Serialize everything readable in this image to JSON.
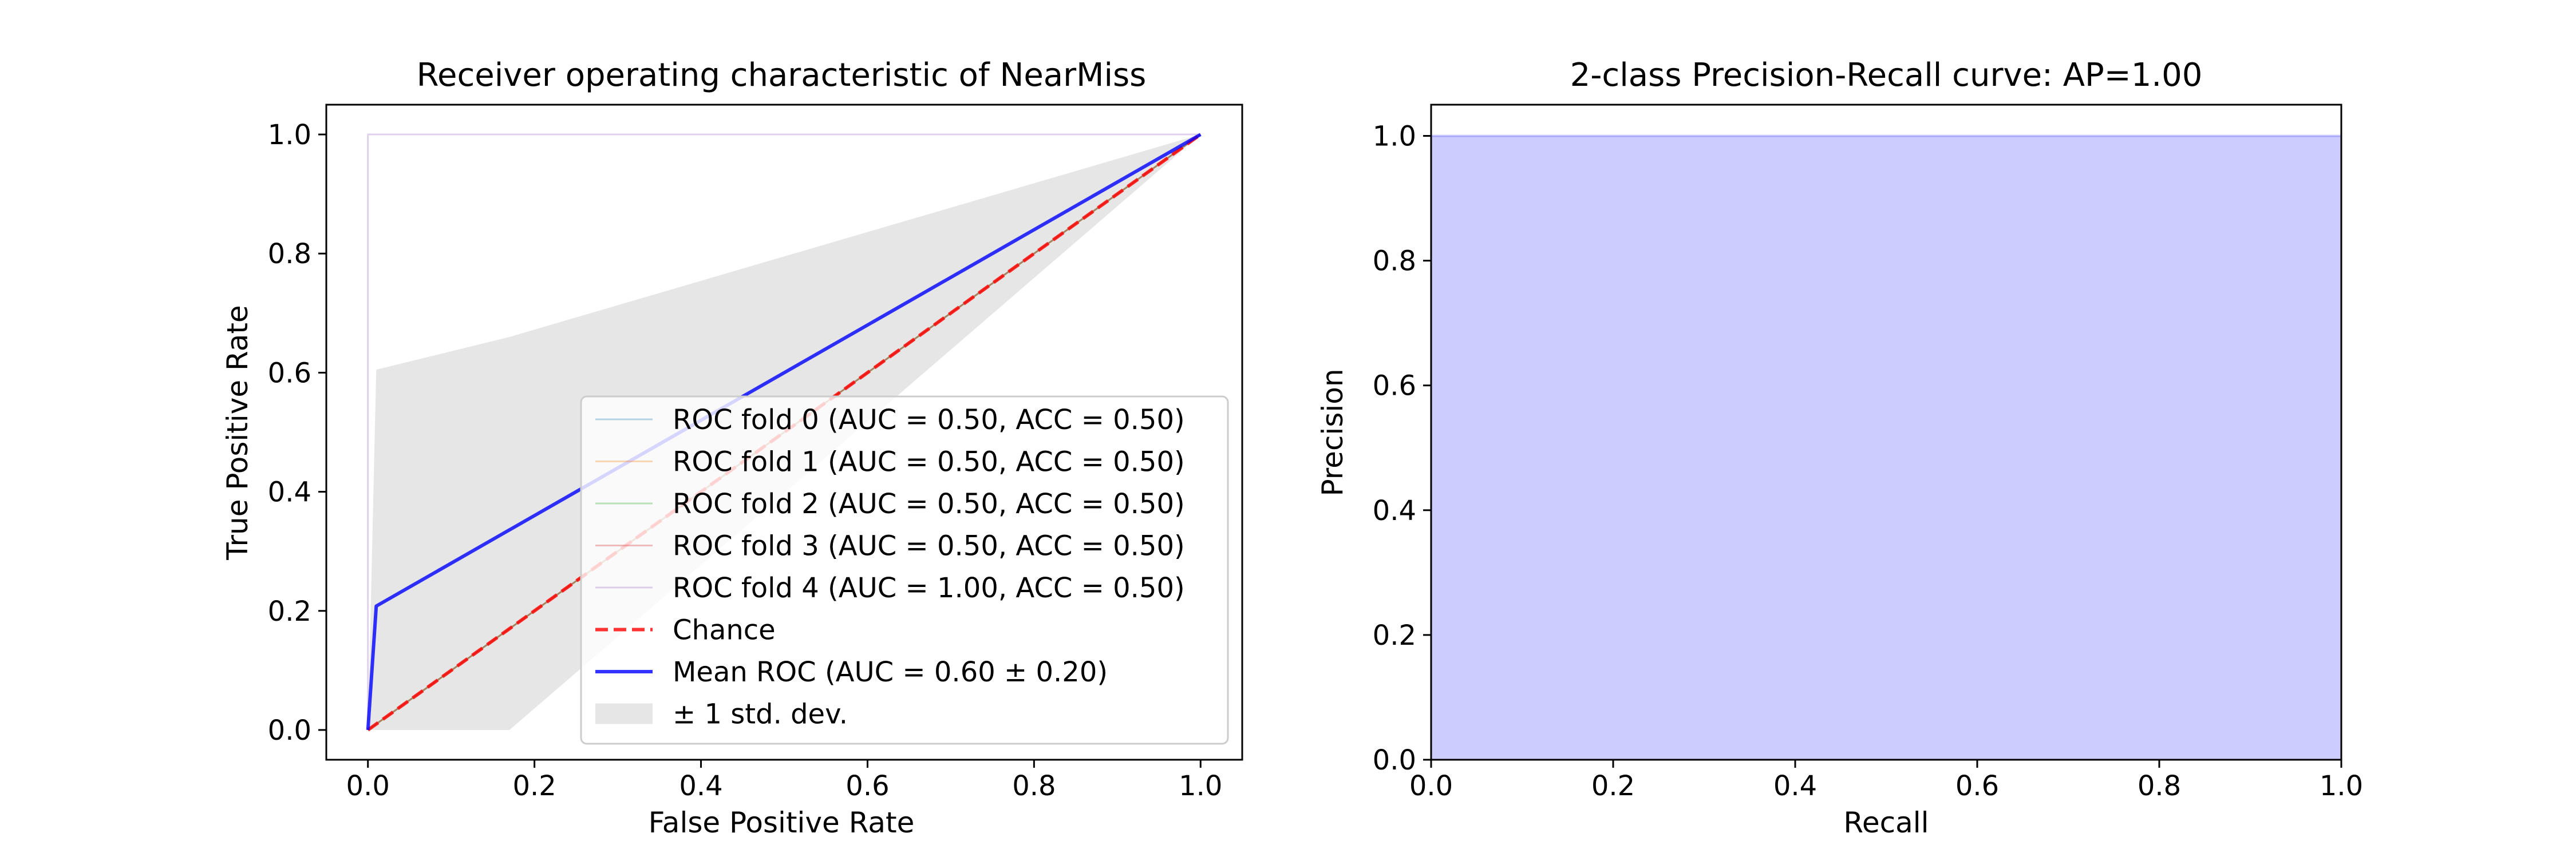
{
  "chart_data": [
    {
      "type": "line",
      "title": "Receiver operating characteristic of NearMiss",
      "xlabel": "False Positive Rate",
      "ylabel": "True Positive Rate",
      "xlim": [
        -0.05,
        1.05
      ],
      "ylim": [
        -0.05,
        1.05
      ],
      "xticks": [
        "0.0",
        "0.2",
        "0.4",
        "0.6",
        "0.8",
        "1.0"
      ],
      "yticks": [
        "0.0",
        "0.2",
        "0.4",
        "0.6",
        "0.8",
        "1.0"
      ],
      "grid": false,
      "legend_position": "lower-right",
      "series": [
        {
          "name": "ROC fold 0 (AUC = 0.50, ACC = 0.50)",
          "color": "#1f77b4",
          "alpha": 0.3,
          "style": "solid",
          "x": [
            0,
            1
          ],
          "y": [
            0,
            1
          ]
        },
        {
          "name": "ROC fold 1 (AUC = 0.50, ACC = 0.50)",
          "color": "#ff7f0e",
          "alpha": 0.3,
          "style": "solid",
          "x": [
            0,
            1
          ],
          "y": [
            0,
            1
          ]
        },
        {
          "name": "ROC fold 2 (AUC = 0.50, ACC = 0.50)",
          "color": "#2ca02c",
          "alpha": 0.3,
          "style": "solid",
          "x": [
            0,
            1
          ],
          "y": [
            0,
            1
          ]
        },
        {
          "name": "ROC fold 3 (AUC = 0.50, ACC = 0.50)",
          "color": "#d62728",
          "alpha": 0.3,
          "style": "solid",
          "x": [
            0,
            1
          ],
          "y": [
            0,
            1
          ]
        },
        {
          "name": "ROC fold 4 (AUC = 1.00, ACC = 0.50)",
          "color": "#9467bd",
          "alpha": 0.3,
          "style": "solid",
          "x": [
            0,
            0,
            1
          ],
          "y": [
            0,
            1,
            1
          ]
        },
        {
          "name": "Chance",
          "color": "#ff0000",
          "alpha": 0.8,
          "style": "dashed",
          "x": [
            0,
            1
          ],
          "y": [
            0,
            1
          ]
        },
        {
          "name": "Mean ROC (AUC = 0.60 ± 0.20)",
          "color": "#0000ff",
          "alpha": 0.8,
          "style": "solid",
          "x": [
            0,
            0.01,
            1
          ],
          "y": [
            0,
            0.208,
            1
          ]
        }
      ],
      "band": {
        "name": "± 1 std. dev.",
        "color": "#808080",
        "alpha": 0.2,
        "x": [
          0,
          0.01,
          0.17,
          1
        ],
        "lower": [
          0,
          0,
          0,
          1
        ],
        "upper": [
          0,
          0.605,
          0.66,
          1
        ]
      }
    },
    {
      "type": "area",
      "title": "2-class Precision-Recall curve: AP=1.00",
      "xlabel": "Recall",
      "ylabel": "Precision",
      "xlim": [
        0.0,
        1.0
      ],
      "ylim": [
        0.0,
        1.05
      ],
      "xticks": [
        "0.0",
        "0.2",
        "0.4",
        "0.6",
        "0.8",
        "1.0"
      ],
      "yticks": [
        "0.0",
        "0.2",
        "0.4",
        "0.6",
        "0.8",
        "1.0"
      ],
      "grid": false,
      "series": [
        {
          "color": "#0000ff",
          "alpha": 0.2,
          "x": [
            0,
            1
          ],
          "y": [
            1,
            1
          ]
        }
      ]
    }
  ]
}
